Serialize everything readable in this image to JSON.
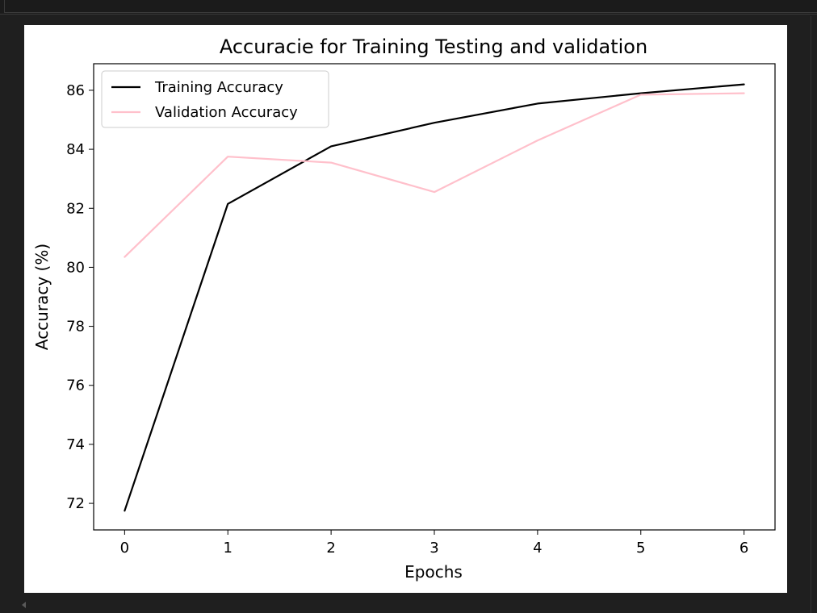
{
  "chart_data": {
    "type": "line",
    "title": "Accuracie for Training Testing and validation",
    "xlabel": "Epochs",
    "ylabel": "Accuracy (%)",
    "x": [
      0,
      1,
      2,
      3,
      4,
      5,
      6
    ],
    "xticks": [
      "0",
      "1",
      "2",
      "3",
      "4",
      "5",
      "6"
    ],
    "yticks": [
      "72",
      "74",
      "76",
      "78",
      "80",
      "82",
      "84",
      "86"
    ],
    "xlim": [
      -0.3,
      6.3
    ],
    "ylim": [
      71.1,
      86.9
    ],
    "grid": false,
    "legend_position": "upper-left",
    "series": [
      {
        "name": "Training Accuracy",
        "color": "#000000",
        "values": [
          71.75,
          82.15,
          84.1,
          84.9,
          85.55,
          85.9,
          86.2
        ]
      },
      {
        "name": "Validation Accuracy",
        "color": "#ffc0cb",
        "values": [
          80.35,
          83.75,
          83.55,
          82.55,
          84.3,
          85.85,
          85.9
        ]
      }
    ]
  }
}
